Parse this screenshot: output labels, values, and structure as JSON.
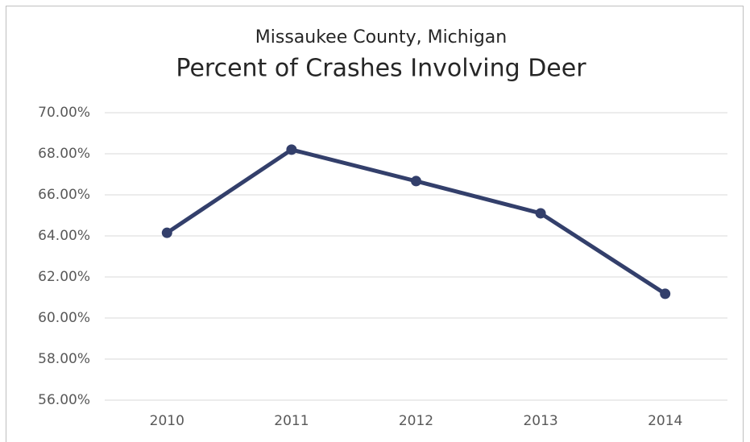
{
  "chart_data": {
    "type": "line",
    "subtitle": "Missaukee County, Michigan",
    "title": "Percent of Crashes Involving Deer",
    "categories": [
      "2010",
      "2011",
      "2012",
      "2013",
      "2014"
    ],
    "series": [
      {
        "name": "Percent of Crashes Involving Deer",
        "color": "#333f6b",
        "values": [
          64.15,
          68.2,
          66.67,
          65.1,
          61.18
        ]
      }
    ],
    "ylim": [
      56,
      70
    ],
    "yticks": [
      {
        "value": 56,
        "label": "56.00%"
      },
      {
        "value": 58,
        "label": "58.00%"
      },
      {
        "value": 60,
        "label": "60.00%"
      },
      {
        "value": 62,
        "label": "62.00%"
      },
      {
        "value": 64,
        "label": "64.00%"
      },
      {
        "value": 66,
        "label": "66.00%"
      },
      {
        "value": 68,
        "label": "68.00%"
      },
      {
        "value": 70,
        "label": "70.00%"
      }
    ],
    "grid": true,
    "legend": false
  }
}
